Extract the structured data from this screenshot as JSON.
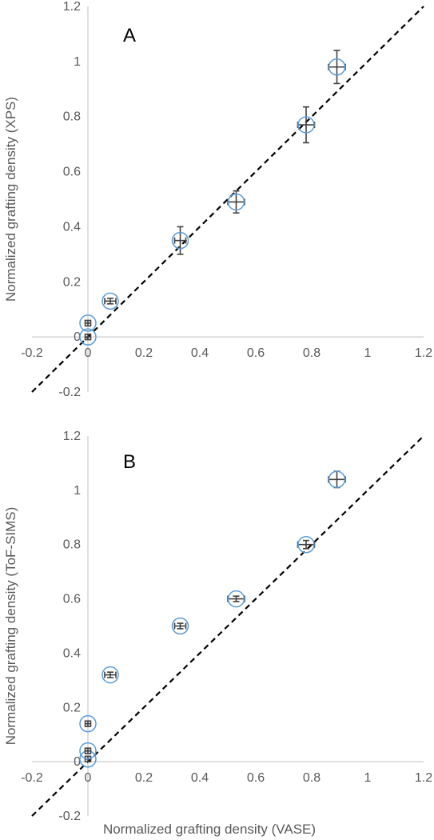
{
  "chart_data": [
    {
      "type": "scatter",
      "panel_label": "A",
      "xlabel": "",
      "ylabel": "Normalized grafting density (XPS)",
      "xlim": [
        -0.2,
        1.2
      ],
      "ylim": [
        -0.2,
        1.2
      ],
      "x_ticks": [
        "-0.2",
        "0",
        "0.2",
        "0.4",
        "0.6",
        "0.8",
        "1",
        "1.2"
      ],
      "y_ticks": [
        "-0.2",
        "0",
        "0.2",
        "0.4",
        "0.6",
        "0.8",
        "1",
        "1.2"
      ],
      "grid": false,
      "legend": "none",
      "reference_line": {
        "style": "dashed",
        "slope": 1,
        "intercept": 0,
        "color": "#000000"
      },
      "marker_color": "#5b9bd5",
      "errorbar_color": "#404040",
      "points": [
        {
          "x": 0.0,
          "y": 0.0,
          "xerr": 0.01,
          "yerr": 0.01
        },
        {
          "x": 0.0,
          "y": 0.05,
          "xerr": 0.01,
          "yerr": 0.01
        },
        {
          "x": 0.08,
          "y": 0.13,
          "xerr": 0.02,
          "yerr": 0.01
        },
        {
          "x": 0.33,
          "y": 0.35,
          "xerr": 0.02,
          "yerr": 0.05
        },
        {
          "x": 0.53,
          "y": 0.49,
          "xerr": 0.03,
          "yerr": 0.04
        },
        {
          "x": 0.78,
          "y": 0.77,
          "xerr": 0.03,
          "yerr": 0.065
        },
        {
          "x": 0.89,
          "y": 0.98,
          "xerr": 0.03,
          "yerr": 0.06
        }
      ]
    },
    {
      "type": "scatter",
      "panel_label": "B",
      "xlabel": "Normalized grafting density (VASE)",
      "ylabel": "Normalized grafting density (ToF-SIMS)",
      "xlim": [
        -0.2,
        1.2
      ],
      "ylim": [
        -0.2,
        1.2
      ],
      "x_ticks": [
        "-0.2",
        "0",
        "0.2",
        "0.4",
        "0.6",
        "0.8",
        "1",
        "1.2"
      ],
      "y_ticks": [
        "-0.2",
        "0",
        "0.2",
        "0.4",
        "0.6",
        "0.8",
        "1",
        "1.2"
      ],
      "grid": false,
      "legend": "none",
      "reference_line": {
        "style": "dashed",
        "slope": 1,
        "intercept": 0,
        "color": "#000000"
      },
      "marker_color": "#5b9bd5",
      "errorbar_color": "#404040",
      "points": [
        {
          "x": 0.0,
          "y": 0.01,
          "xerr": 0.01,
          "yerr": 0.01
        },
        {
          "x": 0.0,
          "y": 0.04,
          "xerr": 0.01,
          "yerr": 0.01
        },
        {
          "x": 0.0,
          "y": 0.14,
          "xerr": 0.01,
          "yerr": 0.01
        },
        {
          "x": 0.08,
          "y": 0.32,
          "xerr": 0.02,
          "yerr": 0.01
        },
        {
          "x": 0.33,
          "y": 0.5,
          "xerr": 0.02,
          "yerr": 0.01
        },
        {
          "x": 0.53,
          "y": 0.6,
          "xerr": 0.03,
          "yerr": 0.01
        },
        {
          "x": 0.78,
          "y": 0.8,
          "xerr": 0.03,
          "yerr": 0.015
        },
        {
          "x": 0.89,
          "y": 1.04,
          "xerr": 0.03,
          "yerr": 0.03
        }
      ]
    }
  ]
}
